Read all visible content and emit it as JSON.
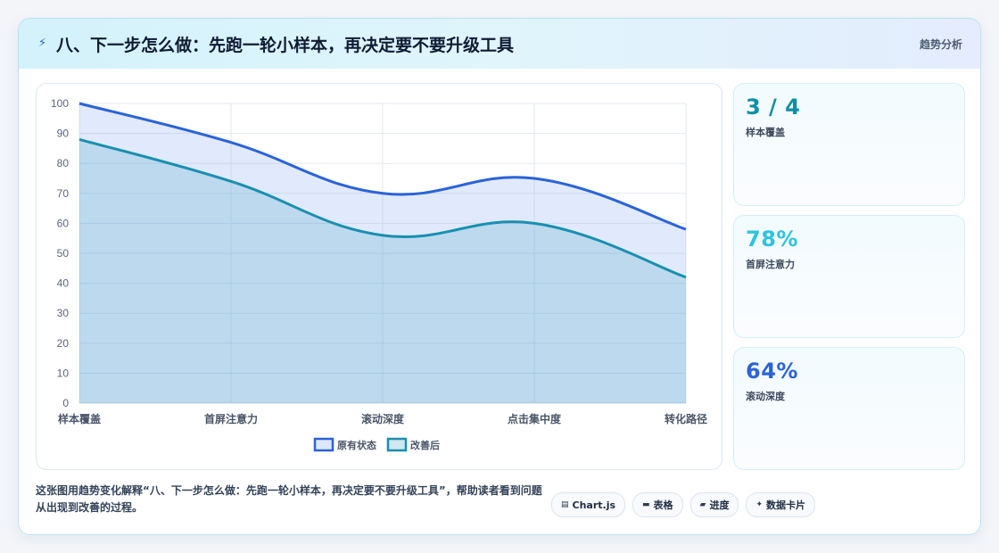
{
  "header": {
    "icon": "lightning-icon",
    "title": "八、下一步怎么做：先跑一轮小样本，再决定要不要升级工具",
    "tag": "趋势分析"
  },
  "chart_data": {
    "type": "area",
    "categories": [
      "样本覆盖",
      "首屏注意力",
      "滚动深度",
      "点击集中度",
      "转化路径"
    ],
    "series": [
      {
        "name": "原有状态",
        "values": [
          100,
          87,
          70,
          75,
          58
        ],
        "color": "#2b63d8"
      },
      {
        "name": "改善后",
        "values": [
          88,
          74,
          56,
          60,
          42
        ],
        "color": "#1a8fb0"
      }
    ],
    "ylim": [
      0,
      100
    ],
    "yticks": [
      0,
      10,
      20,
      30,
      40,
      50,
      60,
      70,
      80,
      90,
      100
    ],
    "grid": true,
    "legend": "bottom",
    "smooth": true
  },
  "stats": [
    {
      "value": "3 / 4",
      "label": "样本覆盖",
      "color": "#0e8ea6"
    },
    {
      "value": "78%",
      "label": "首屏注意力",
      "color": "#2ec3df"
    },
    {
      "value": "64%",
      "label": "滚动深度",
      "color": "#2b63d8"
    }
  ],
  "caption": "这张图用趋势变化解释“八、下一步怎么做：先跑一轮小样本，再决定要不要升级工具”，帮助读者看到问题从出现到改善的过程。",
  "chips": [
    {
      "icon": "chart-icon",
      "glyph": "▤",
      "label": "Chart.js"
    },
    {
      "icon": "table-icon",
      "glyph": "▬",
      "label": "表格"
    },
    {
      "icon": "progress-icon",
      "glyph": "▰",
      "label": "进度"
    },
    {
      "icon": "sparkle-icon",
      "glyph": "✦",
      "label": "数据卡片"
    }
  ]
}
